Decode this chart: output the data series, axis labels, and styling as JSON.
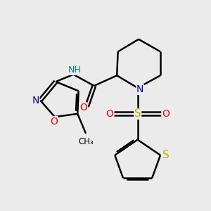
{
  "background_color": "#ebebeb",
  "bond_color": "#000000",
  "n_color": "#0000cc",
  "o_color": "#ff0000",
  "s_color": "#b8b800",
  "nh_color": "#008080",
  "figsize": [
    3.0,
    3.0
  ],
  "dpi": 100,
  "xlim": [
    0,
    10
  ],
  "ylim": [
    0,
    10
  ]
}
